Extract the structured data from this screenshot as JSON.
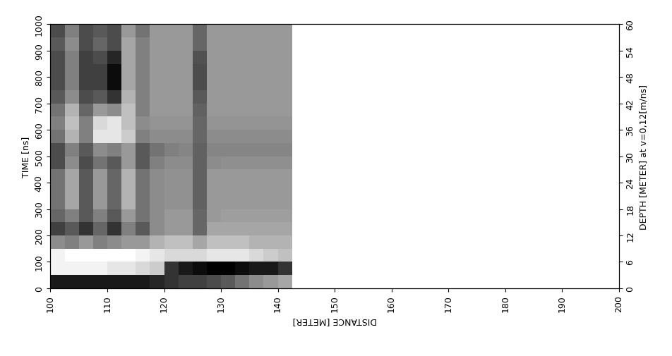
{
  "chart_data": {
    "type": "heatmap",
    "x_label": "DISTANCE [METER]",
    "y_label": "TIME [ns]",
    "y2_label": "DEPTH [METER] at v=0,12[m/ns]",
    "xlim": [
      100,
      200
    ],
    "xticks": [
      100,
      110,
      120,
      130,
      140,
      150,
      160,
      170,
      180,
      190,
      200
    ],
    "ylim": [
      0,
      1000
    ],
    "yticks": [
      0,
      100,
      200,
      300,
      400,
      500,
      600,
      700,
      800,
      900,
      1000
    ],
    "y2lim": [
      0,
      60
    ],
    "y2ticks": [
      0,
      6,
      12,
      18,
      24,
      30,
      36,
      42,
      48,
      54,
      60
    ],
    "grid": false,
    "x_edges": [
      100,
      102.5,
      105,
      107.5,
      110,
      112.5,
      115,
      117.5,
      120,
      122.5,
      125,
      127.5,
      130,
      132.5,
      135,
      137.5,
      140,
      142.5
    ],
    "y_edges": [
      0,
      50,
      100,
      150,
      200,
      250,
      300,
      350,
      400,
      450,
      500,
      550,
      600,
      650,
      700,
      750,
      800,
      850,
      900,
      950,
      1000
    ],
    "cells": [
      [
        0.1,
        0.1,
        0.1,
        0.1,
        0.1,
        0.1,
        0.1,
        0.15,
        0.2,
        0.25,
        0.25,
        0.3,
        0.35,
        0.45,
        0.55,
        0.6,
        0.65
      ],
      [
        0.95,
        0.95,
        0.95,
        0.95,
        0.9,
        0.9,
        0.85,
        0.8,
        0.2,
        0.1,
        0.05,
        0.0,
        0.0,
        0.05,
        0.1,
        0.1,
        0.2
      ],
      [
        0.95,
        1.0,
        1.0,
        1.0,
        1.0,
        1.0,
        0.95,
        0.9,
        0.85,
        0.85,
        0.85,
        0.9,
        0.9,
        0.9,
        0.85,
        0.8,
        0.75
      ],
      [
        0.55,
        0.5,
        0.6,
        0.5,
        0.55,
        0.6,
        0.6,
        0.7,
        0.75,
        0.75,
        0.65,
        0.75,
        0.75,
        0.75,
        0.7,
        0.7,
        0.7
      ],
      [
        0.25,
        0.35,
        0.2,
        0.4,
        0.2,
        0.5,
        0.35,
        0.55,
        0.6,
        0.6,
        0.4,
        0.65,
        0.65,
        0.65,
        0.65,
        0.65,
        0.65
      ],
      [
        0.4,
        0.5,
        0.35,
        0.5,
        0.35,
        0.6,
        0.45,
        0.55,
        0.6,
        0.6,
        0.4,
        0.6,
        0.62,
        0.62,
        0.62,
        0.62,
        0.62
      ],
      [
        0.45,
        0.65,
        0.35,
        0.6,
        0.4,
        0.7,
        0.45,
        0.55,
        0.57,
        0.57,
        0.38,
        0.6,
        0.6,
        0.6,
        0.6,
        0.6,
        0.6
      ],
      [
        0.45,
        0.65,
        0.35,
        0.6,
        0.4,
        0.7,
        0.45,
        0.55,
        0.57,
        0.57,
        0.38,
        0.6,
        0.6,
        0.6,
        0.6,
        0.6,
        0.6
      ],
      [
        0.45,
        0.65,
        0.35,
        0.6,
        0.4,
        0.7,
        0.45,
        0.55,
        0.57,
        0.57,
        0.38,
        0.6,
        0.6,
        0.6,
        0.6,
        0.6,
        0.6
      ],
      [
        0.3,
        0.55,
        0.3,
        0.45,
        0.35,
        0.6,
        0.35,
        0.5,
        0.55,
        0.55,
        0.38,
        0.55,
        0.56,
        0.56,
        0.56,
        0.56,
        0.56
      ],
      [
        0.3,
        0.5,
        0.35,
        0.55,
        0.5,
        0.6,
        0.35,
        0.45,
        0.5,
        0.52,
        0.38,
        0.52,
        0.52,
        0.52,
        0.52,
        0.52,
        0.52
      ],
      [
        0.45,
        0.7,
        0.5,
        0.9,
        0.9,
        0.8,
        0.5,
        0.55,
        0.55,
        0.55,
        0.4,
        0.55,
        0.55,
        0.55,
        0.55,
        0.55,
        0.55
      ],
      [
        0.5,
        0.75,
        0.5,
        0.85,
        0.9,
        0.75,
        0.55,
        0.58,
        0.58,
        0.58,
        0.4,
        0.58,
        0.58,
        0.58,
        0.58,
        0.58,
        0.58
      ],
      [
        0.45,
        0.7,
        0.4,
        0.6,
        0.55,
        0.75,
        0.5,
        0.6,
        0.6,
        0.6,
        0.38,
        0.6,
        0.6,
        0.6,
        0.6,
        0.6,
        0.6
      ],
      [
        0.35,
        0.55,
        0.3,
        0.35,
        0.2,
        0.7,
        0.5,
        0.6,
        0.6,
        0.6,
        0.35,
        0.6,
        0.6,
        0.6,
        0.6,
        0.6,
        0.6
      ],
      [
        0.3,
        0.5,
        0.25,
        0.25,
        0.05,
        0.65,
        0.5,
        0.6,
        0.6,
        0.6,
        0.3,
        0.6,
        0.6,
        0.6,
        0.6,
        0.6,
        0.6
      ],
      [
        0.3,
        0.5,
        0.25,
        0.25,
        0.05,
        0.65,
        0.5,
        0.6,
        0.6,
        0.6,
        0.3,
        0.6,
        0.6,
        0.6,
        0.6,
        0.6,
        0.6
      ],
      [
        0.3,
        0.5,
        0.25,
        0.3,
        0.15,
        0.65,
        0.5,
        0.6,
        0.6,
        0.6,
        0.32,
        0.6,
        0.6,
        0.6,
        0.6,
        0.6,
        0.6
      ],
      [
        0.35,
        0.55,
        0.3,
        0.4,
        0.3,
        0.65,
        0.5,
        0.6,
        0.6,
        0.6,
        0.4,
        0.6,
        0.6,
        0.6,
        0.6,
        0.6,
        0.6
      ],
      [
        0.3,
        0.5,
        0.3,
        0.35,
        0.3,
        0.6,
        0.45,
        0.6,
        0.6,
        0.6,
        0.4,
        0.6,
        0.6,
        0.6,
        0.6,
        0.6,
        0.6
      ]
    ]
  }
}
